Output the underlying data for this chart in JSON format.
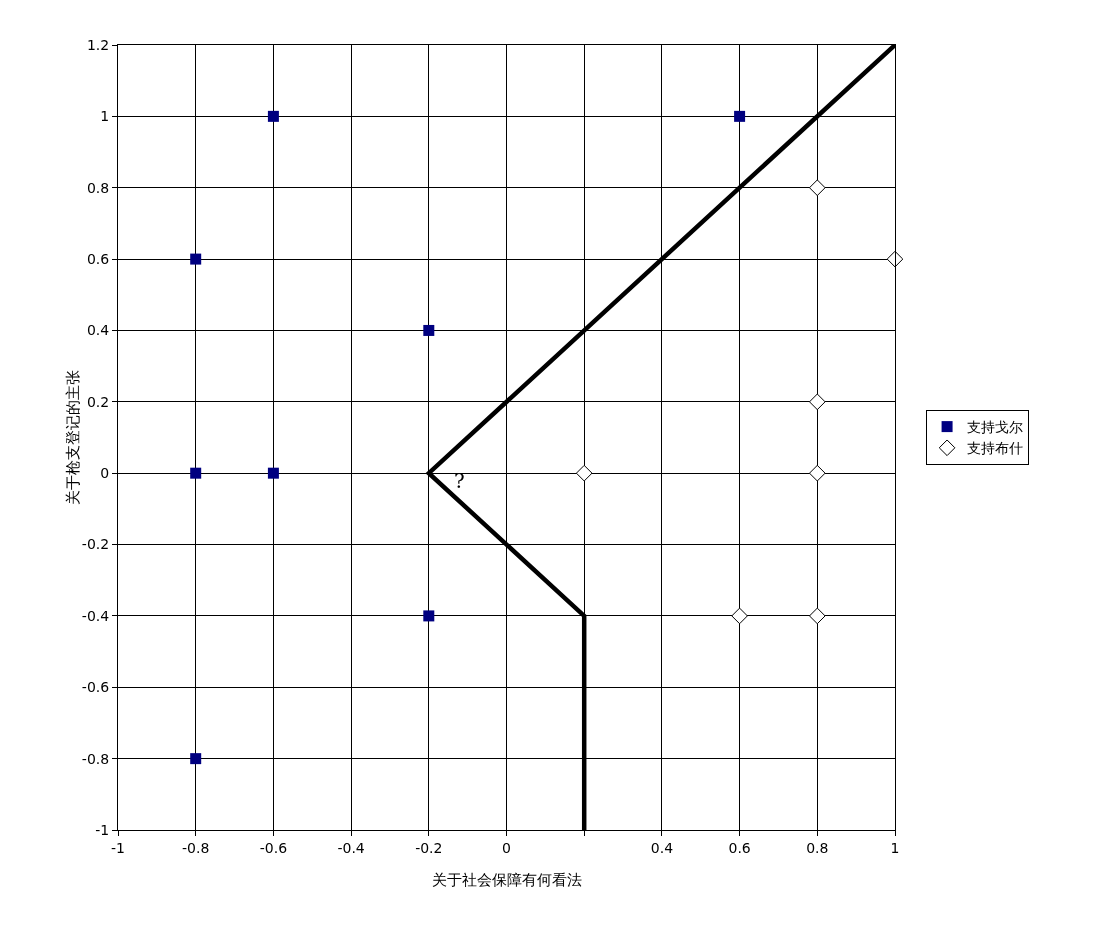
{
  "chart_data": {
    "type": "scatter",
    "xlabel": "关于社会保障有何看法",
    "ylabel": "关于枪支登记的主张",
    "series": [
      {
        "name": "支持戈尔",
        "marker": "square",
        "color": "#000080",
        "x": [
          -0.6,
          0.6,
          -0.8,
          -0.2,
          -0.8,
          -0.6,
          -0.2,
          -0.8
        ],
        "values": [
          1,
          1,
          0.6,
          0.4,
          0,
          0,
          -0.4,
          -0.8
        ]
      },
      {
        "name": "支持布什",
        "marker": "diamond",
        "color": "#ffffff",
        "x": [
          0.8,
          1,
          0.8,
          0.2,
          0.8,
          0.6,
          0.8
        ],
        "values": [
          0.8,
          0.6,
          0.2,
          0,
          0,
          -0.4,
          -0.4
        ]
      },
      {
        "type": "line",
        "marker": "none",
        "color": "#000000",
        "x": [
          1,
          -0.2,
          0.2,
          0.2
        ],
        "values": [
          1.2,
          0,
          -0.4,
          -1
        ]
      }
    ],
    "annotations": [
      "?"
    ],
    "xlim": [
      -1,
      1
    ],
    "xticks": [
      -1,
      -0.8,
      -0.6,
      -0.4,
      -0.2,
      0,
      {
        "value": 0.2,
        "label": null
      },
      0.4,
      0.6,
      0.8,
      1
    ],
    "ylim": [
      -1,
      1.2
    ],
    "yticks": [
      -1,
      -0.8,
      -0.6,
      -0.4,
      -0.2,
      0,
      0.2,
      0.4,
      0.6,
      0.8,
      1,
      1.2
    ],
    "grid": true,
    "legend": "right"
  }
}
